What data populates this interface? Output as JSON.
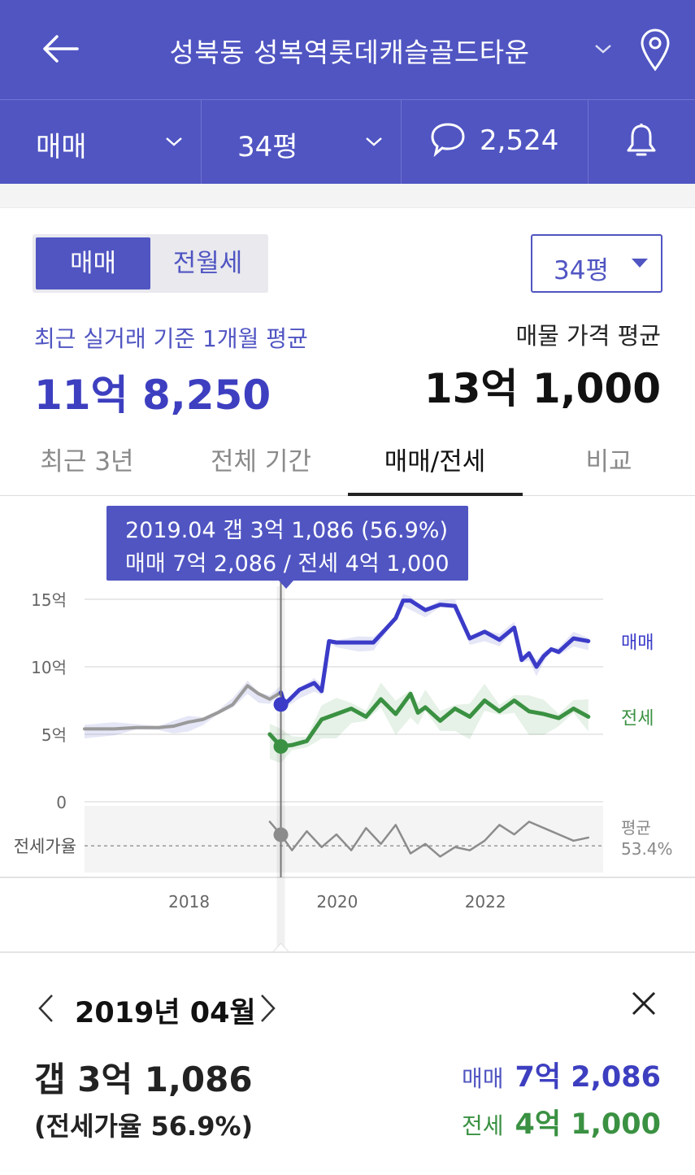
{
  "header": {
    "title": "성북동 성복역롯데캐슬골드타운",
    "deal_type": "매매",
    "size": "34평",
    "comment_count": "2,524",
    "colors": {
      "brand": "#5055c2"
    }
  },
  "segment": {
    "sale": "매매",
    "rent": "전월세",
    "selected": "매매"
  },
  "size_dropdown": {
    "label": "34평"
  },
  "stats": {
    "recent_basis_label": "최근 실거래 기준 1개월 평균",
    "recent_basis_value": "11억 8,250",
    "listing_label": "매물 가격 평균",
    "listing_value": "13억 1,000"
  },
  "tabs": [
    {
      "label": "최근 3년"
    },
    {
      "label": "전체 기간"
    },
    {
      "label": "매매/전세",
      "active": true
    },
    {
      "label": "비교"
    }
  ],
  "tooltip": {
    "line1": "2019.04  갭 3억 1,086 (56.9%)",
    "line2": "매매 7억 2,086 / 전세 4억 1,000"
  },
  "chart_data": {
    "type": "line",
    "x_ticks": [
      "2018",
      "2020",
      "2022"
    ],
    "y_ticks": [
      "15억",
      "10억",
      "5억",
      "0"
    ],
    "ylim": [
      0,
      15
    ],
    "y_unit": "억",
    "sub_label": "전세가율",
    "average_label": "평균",
    "average_value": "53.4%",
    "selected": {
      "date": "2019.04",
      "sale": 7.2086,
      "jeonse": 4.1,
      "ratio": 56.9
    },
    "series": [
      {
        "name": "매매",
        "color": "#3b3bc8",
        "x": [
          2016.6,
          2017.0,
          2017.3,
          2017.6,
          2017.8,
          2018.0,
          2018.2,
          2018.4,
          2018.6,
          2018.8,
          2018.95,
          2019.1,
          2019.25,
          2019.3,
          2019.5,
          2019.7,
          2019.8,
          2019.9,
          2020.0,
          2020.3,
          2020.5,
          2020.7,
          2020.8,
          2020.9,
          2021.0,
          2021.2,
          2021.4,
          2021.6,
          2021.8,
          2022.0,
          2022.2,
          2022.4,
          2022.5,
          2022.6,
          2022.7,
          2022.8,
          2022.9,
          2023.0,
          2023.2,
          2023.4
        ],
        "y": [
          5.4,
          5.4,
          5.5,
          5.5,
          5.6,
          5.9,
          6.1,
          6.6,
          7.2,
          8.6,
          8.0,
          7.6,
          8.1,
          7.2,
          8.3,
          8.8,
          8.2,
          11.9,
          11.8,
          11.8,
          11.8,
          13.0,
          13.6,
          14.9,
          14.9,
          14.2,
          14.6,
          14.5,
          12.1,
          12.6,
          12.0,
          12.9,
          10.5,
          11.0,
          10.0,
          10.8,
          11.3,
          11.1,
          12.1,
          11.9
        ],
        "end_label": "매매"
      },
      {
        "name": "전세",
        "color": "#3a9142",
        "x": [
          2019.1,
          2019.25,
          2019.4,
          2019.6,
          2019.8,
          2020.0,
          2020.2,
          2020.4,
          2020.6,
          2020.8,
          2021.0,
          2021.1,
          2021.2,
          2021.4,
          2021.6,
          2021.8,
          2022.0,
          2022.2,
          2022.4,
          2022.6,
          2022.8,
          2023.0,
          2023.2,
          2023.4
        ],
        "y": [
          5.0,
          4.1,
          4.2,
          4.5,
          6.1,
          6.5,
          6.9,
          6.3,
          7.6,
          6.5,
          8.0,
          6.6,
          7.0,
          6.0,
          6.9,
          6.3,
          7.5,
          6.7,
          7.5,
          6.7,
          6.5,
          6.2,
          6.9,
          6.3
        ],
        "end_label": "전세"
      },
      {
        "name": "전세가율",
        "color": "#8c8c8c",
        "x": [
          2019.1,
          2019.25,
          2019.4,
          2019.6,
          2019.8,
          2020.0,
          2020.2,
          2020.4,
          2020.6,
          2020.8,
          2021.0,
          2021.2,
          2021.4,
          2021.6,
          2021.8,
          2022.0,
          2022.2,
          2022.4,
          2022.6,
          2022.8,
          2023.0,
          2023.2,
          2023.4
        ],
        "y": [
          61,
          56.9,
          52,
          58,
          53,
          57,
          52,
          59,
          54,
          60,
          51,
          54,
          50,
          53,
          52,
          55,
          60,
          57,
          61,
          59,
          57,
          55,
          56
        ]
      }
    ]
  },
  "panel": {
    "date": "2019년 04월",
    "gap": "갭 3억 1,086",
    "ratio": "(전세가율 56.9%)",
    "sale_label": "매매",
    "sale_value": "7억 2,086",
    "rent_label": "전세",
    "rent_value": "4억 1,000"
  }
}
